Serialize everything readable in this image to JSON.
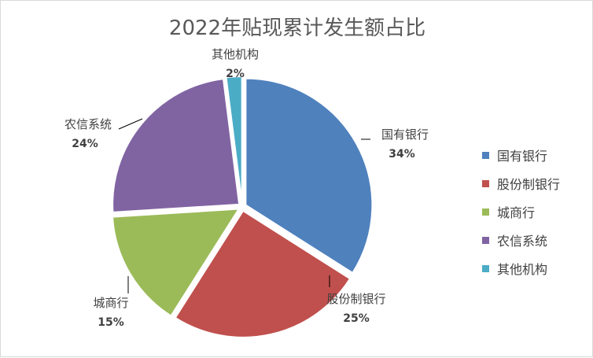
{
  "chart_data": {
    "type": "pie",
    "title": "2022年贴现累计发生额占比",
    "legend_position": "right",
    "slices": [
      {
        "name": "国有银行",
        "value": 34,
        "label_pct": "34%",
        "color": "#4f81bd"
      },
      {
        "name": "股份制银行",
        "value": 25,
        "label_pct": "25%",
        "color": "#c0504d"
      },
      {
        "name": "城商行",
        "value": 15,
        "label_pct": "15%",
        "color": "#9bbb59"
      },
      {
        "name": "农信系统",
        "value": 24,
        "label_pct": "24%",
        "color": "#8064a2"
      },
      {
        "name": "其他机构",
        "value": 2,
        "label_pct": "2%",
        "color": "#4bacc6"
      }
    ]
  }
}
